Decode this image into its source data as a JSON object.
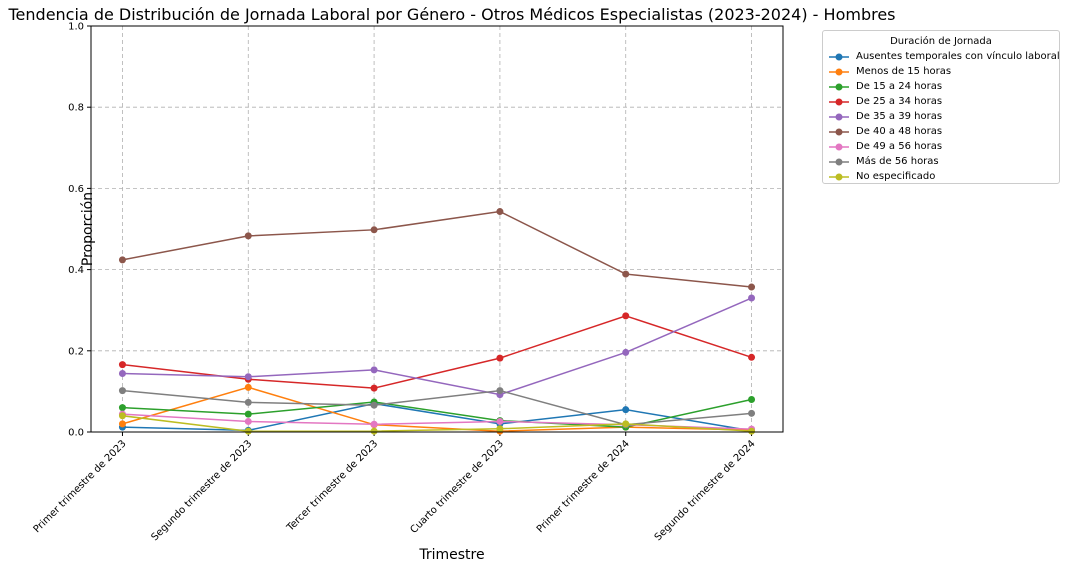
{
  "chart_data": {
    "type": "line",
    "title": "Tendencia de Distribución de Jornada Laboral por Género - Otros Médicos Especialistas (2023-2024) - Hombres",
    "xlabel": "Trimestre",
    "ylabel": "Proporción",
    "ylim": [
      0,
      1.0
    ],
    "yticks": [
      "0.0",
      "0.2",
      "0.4",
      "0.6",
      "0.8",
      "1.0"
    ],
    "grid": true,
    "legend_title": "Duración de Jornada",
    "legend_position": "outside-top-right",
    "categories": [
      "Primer trimestre de 2023",
      "Segundo trimestre de 2023",
      "Tercer trimestre de 2023",
      "Cuarto trimestre de 2023",
      "Primer trimestre de 2024",
      "Segundo trimestre de 2024"
    ],
    "series": [
      {
        "name": "Ausentes temporales con vínculo laboral",
        "color": "#1f77b4",
        "values": [
          0.012,
          0.004,
          0.07,
          0.02,
          0.055,
          0.003
        ]
      },
      {
        "name": "Menos de 15 horas",
        "color": "#ff7f0e",
        "values": [
          0.02,
          0.11,
          0.018,
          0.002,
          0.012,
          0.005
        ]
      },
      {
        "name": "De 15 a 24 horas",
        "color": "#2ca02c",
        "values": [
          0.06,
          0.044,
          0.074,
          0.028,
          0.012,
          0.08
        ]
      },
      {
        "name": "De 25 a 34 horas",
        "color": "#d62728",
        "values": [
          0.166,
          0.13,
          0.108,
          0.182,
          0.286,
          0.184
        ]
      },
      {
        "name": "De 35 a 39 horas",
        "color": "#9467bd",
        "values": [
          0.144,
          0.136,
          0.153,
          0.092,
          0.196,
          0.33
        ]
      },
      {
        "name": "De 40 a 48 horas",
        "color": "#8c564b",
        "values": [
          0.424,
          0.483,
          0.498,
          0.543,
          0.389,
          0.357
        ]
      },
      {
        "name": "De 49 a 56 horas",
        "color": "#e377c2",
        "values": [
          0.044,
          0.026,
          0.019,
          0.026,
          0.018,
          0.007
        ]
      },
      {
        "name": "Más de 56 horas",
        "color": "#7f7f7f",
        "values": [
          0.102,
          0.073,
          0.066,
          0.102,
          0.018,
          0.046
        ]
      },
      {
        "name": "No especificado",
        "color": "#bcbd22",
        "values": [
          0.04,
          0.002,
          0.002,
          0.008,
          0.02,
          0.002
        ]
      }
    ]
  }
}
